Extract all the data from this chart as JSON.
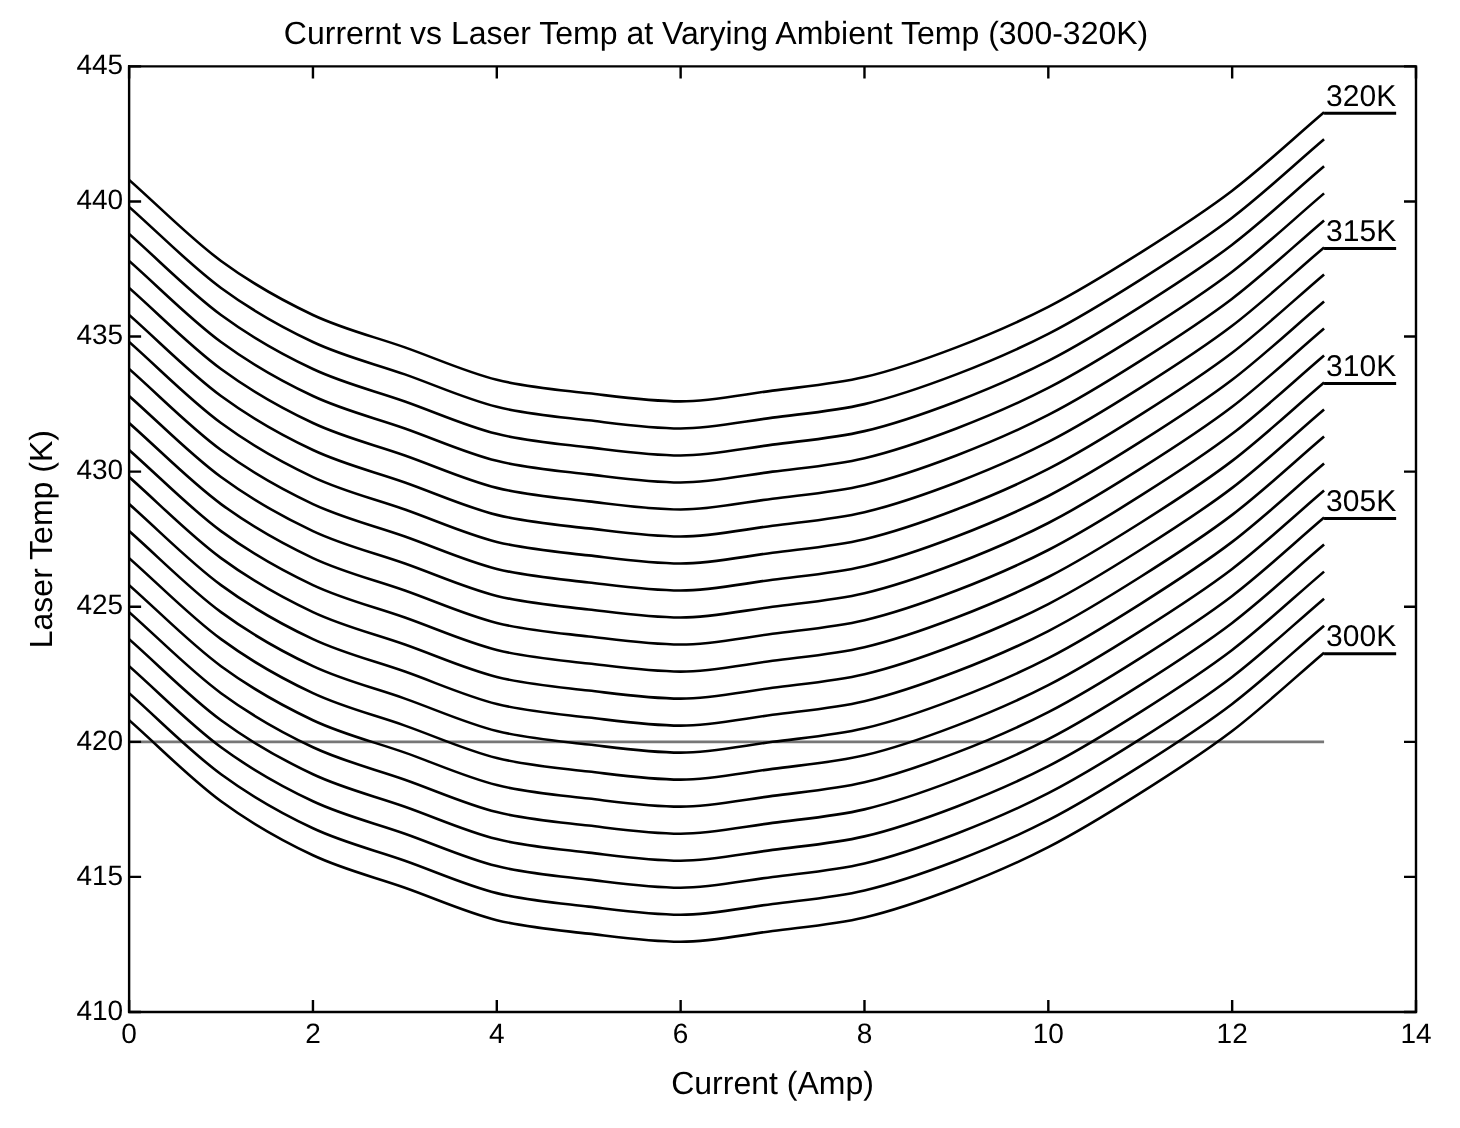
{
  "chart_data": {
    "type": "line",
    "title": "Currernt vs Laser Temp at Varying Ambient Temp (300-320K)",
    "xlabel": "Current (Amp)",
    "ylabel": "Laser Temp (K)",
    "x": [
      0,
      1,
      2,
      3,
      4,
      5,
      6,
      7,
      8,
      9,
      10,
      11,
      12,
      13
    ],
    "xlim": [
      0,
      14
    ],
    "xticks": [
      0,
      2,
      4,
      6,
      8,
      10,
      12,
      14
    ],
    "ylim": [
      410,
      445
    ],
    "yticks": [
      410,
      415,
      420,
      425,
      430,
      435,
      440,
      445
    ],
    "grid": false,
    "legend": "right",
    "series": [
      {
        "name": "300K",
        "color": "#000000",
        "values": [
          420.8,
          417.8,
          415.8,
          414.6,
          413.4,
          412.9,
          412.6,
          413.0,
          413.5,
          414.6,
          416.1,
          418.1,
          420.4,
          423.3
        ]
      },
      {
        "color": "#000000",
        "values": [
          421.8,
          418.8,
          416.8,
          415.6,
          414.4,
          413.9,
          413.6,
          414.0,
          414.5,
          415.6,
          417.1,
          419.1,
          421.4,
          424.3
        ]
      },
      {
        "color": "#000000",
        "values": [
          422.8,
          419.8,
          417.8,
          416.6,
          415.4,
          414.9,
          414.6,
          415.0,
          415.5,
          416.6,
          418.1,
          420.1,
          422.4,
          425.3
        ]
      },
      {
        "color": "#000000",
        "values": [
          423.8,
          420.8,
          418.8,
          417.6,
          416.4,
          415.9,
          415.6,
          416.0,
          416.5,
          417.6,
          419.1,
          421.1,
          423.4,
          426.3
        ]
      },
      {
        "color": "#000000",
        "values": [
          424.8,
          421.8,
          419.8,
          418.6,
          417.4,
          416.9,
          416.6,
          417.0,
          417.5,
          418.6,
          420.1,
          422.1,
          424.4,
          427.3
        ]
      },
      {
        "name": "305K",
        "color": "#000000",
        "values": [
          425.8,
          422.8,
          420.8,
          419.6,
          418.4,
          417.9,
          417.6,
          418.0,
          418.5,
          419.6,
          421.1,
          423.1,
          425.4,
          428.3
        ]
      },
      {
        "color": "#000000",
        "values": [
          426.8,
          423.8,
          421.8,
          420.6,
          419.4,
          418.9,
          418.6,
          419.0,
          419.5,
          420.6,
          422.1,
          424.1,
          426.4,
          429.3
        ]
      },
      {
        "color": "#000000",
        "values": [
          427.8,
          424.8,
          422.8,
          421.6,
          420.4,
          419.9,
          419.6,
          420.0,
          420.5,
          421.6,
          423.1,
          425.1,
          427.4,
          430.3
        ]
      },
      {
        "color": "#000000",
        "values": [
          428.8,
          425.8,
          423.8,
          422.6,
          421.4,
          420.9,
          420.6,
          421.0,
          421.5,
          422.6,
          424.1,
          426.1,
          428.4,
          431.3
        ]
      },
      {
        "color": "#000000",
        "values": [
          429.8,
          426.8,
          424.8,
          423.6,
          422.4,
          421.9,
          421.6,
          422.0,
          422.5,
          423.6,
          425.1,
          427.1,
          429.4,
          432.3
        ]
      },
      {
        "name": "310K",
        "color": "#000000",
        "values": [
          430.8,
          427.8,
          425.8,
          424.6,
          423.4,
          422.9,
          422.6,
          423.0,
          423.5,
          424.6,
          426.1,
          428.1,
          430.4,
          433.3
        ]
      },
      {
        "color": "#000000",
        "values": [
          431.8,
          428.8,
          426.8,
          425.6,
          424.4,
          423.9,
          423.6,
          424.0,
          424.5,
          425.6,
          427.1,
          429.1,
          431.4,
          434.3
        ]
      },
      {
        "color": "#000000",
        "values": [
          432.8,
          429.8,
          427.8,
          426.6,
          425.4,
          424.9,
          424.6,
          425.0,
          425.5,
          426.6,
          428.1,
          430.1,
          432.4,
          435.3
        ]
      },
      {
        "color": "#000000",
        "values": [
          433.8,
          430.8,
          428.8,
          427.6,
          426.4,
          425.9,
          425.6,
          426.0,
          426.5,
          427.6,
          429.1,
          431.1,
          433.4,
          436.3
        ]
      },
      {
        "color": "#000000",
        "values": [
          434.8,
          431.8,
          429.8,
          428.6,
          427.4,
          426.9,
          426.6,
          427.0,
          427.5,
          428.6,
          430.1,
          432.1,
          434.4,
          437.3
        ]
      },
      {
        "name": "315K",
        "color": "#000000",
        "values": [
          435.8,
          432.8,
          430.8,
          429.6,
          428.4,
          427.9,
          427.6,
          428.0,
          428.5,
          429.6,
          431.1,
          433.1,
          435.4,
          438.3
        ]
      },
      {
        "color": "#000000",
        "values": [
          436.8,
          433.8,
          431.8,
          430.6,
          429.4,
          428.9,
          428.6,
          429.0,
          429.5,
          430.6,
          432.1,
          434.1,
          436.4,
          439.3
        ]
      },
      {
        "color": "#000000",
        "values": [
          437.8,
          434.8,
          432.8,
          431.6,
          430.4,
          429.9,
          429.6,
          430.0,
          430.5,
          431.6,
          433.1,
          435.1,
          437.4,
          440.3
        ]
      },
      {
        "color": "#000000",
        "values": [
          438.8,
          435.8,
          433.8,
          432.6,
          431.4,
          430.9,
          430.6,
          431.0,
          431.5,
          432.6,
          434.1,
          436.1,
          438.4,
          441.3
        ]
      },
      {
        "color": "#000000",
        "values": [
          439.8,
          436.8,
          434.8,
          433.6,
          432.4,
          431.9,
          431.6,
          432.0,
          432.5,
          433.6,
          435.1,
          437.1,
          439.4,
          442.3
        ]
      },
      {
        "name": "320K",
        "color": "#000000",
        "values": [
          440.8,
          437.8,
          435.8,
          434.6,
          433.4,
          432.9,
          432.6,
          433.0,
          433.5,
          434.6,
          436.1,
          438.1,
          440.4,
          443.3
        ]
      },
      {
        "color": "#777777",
        "x": [
          0,
          13
        ],
        "values": [
          420,
          420
        ]
      }
    ]
  }
}
